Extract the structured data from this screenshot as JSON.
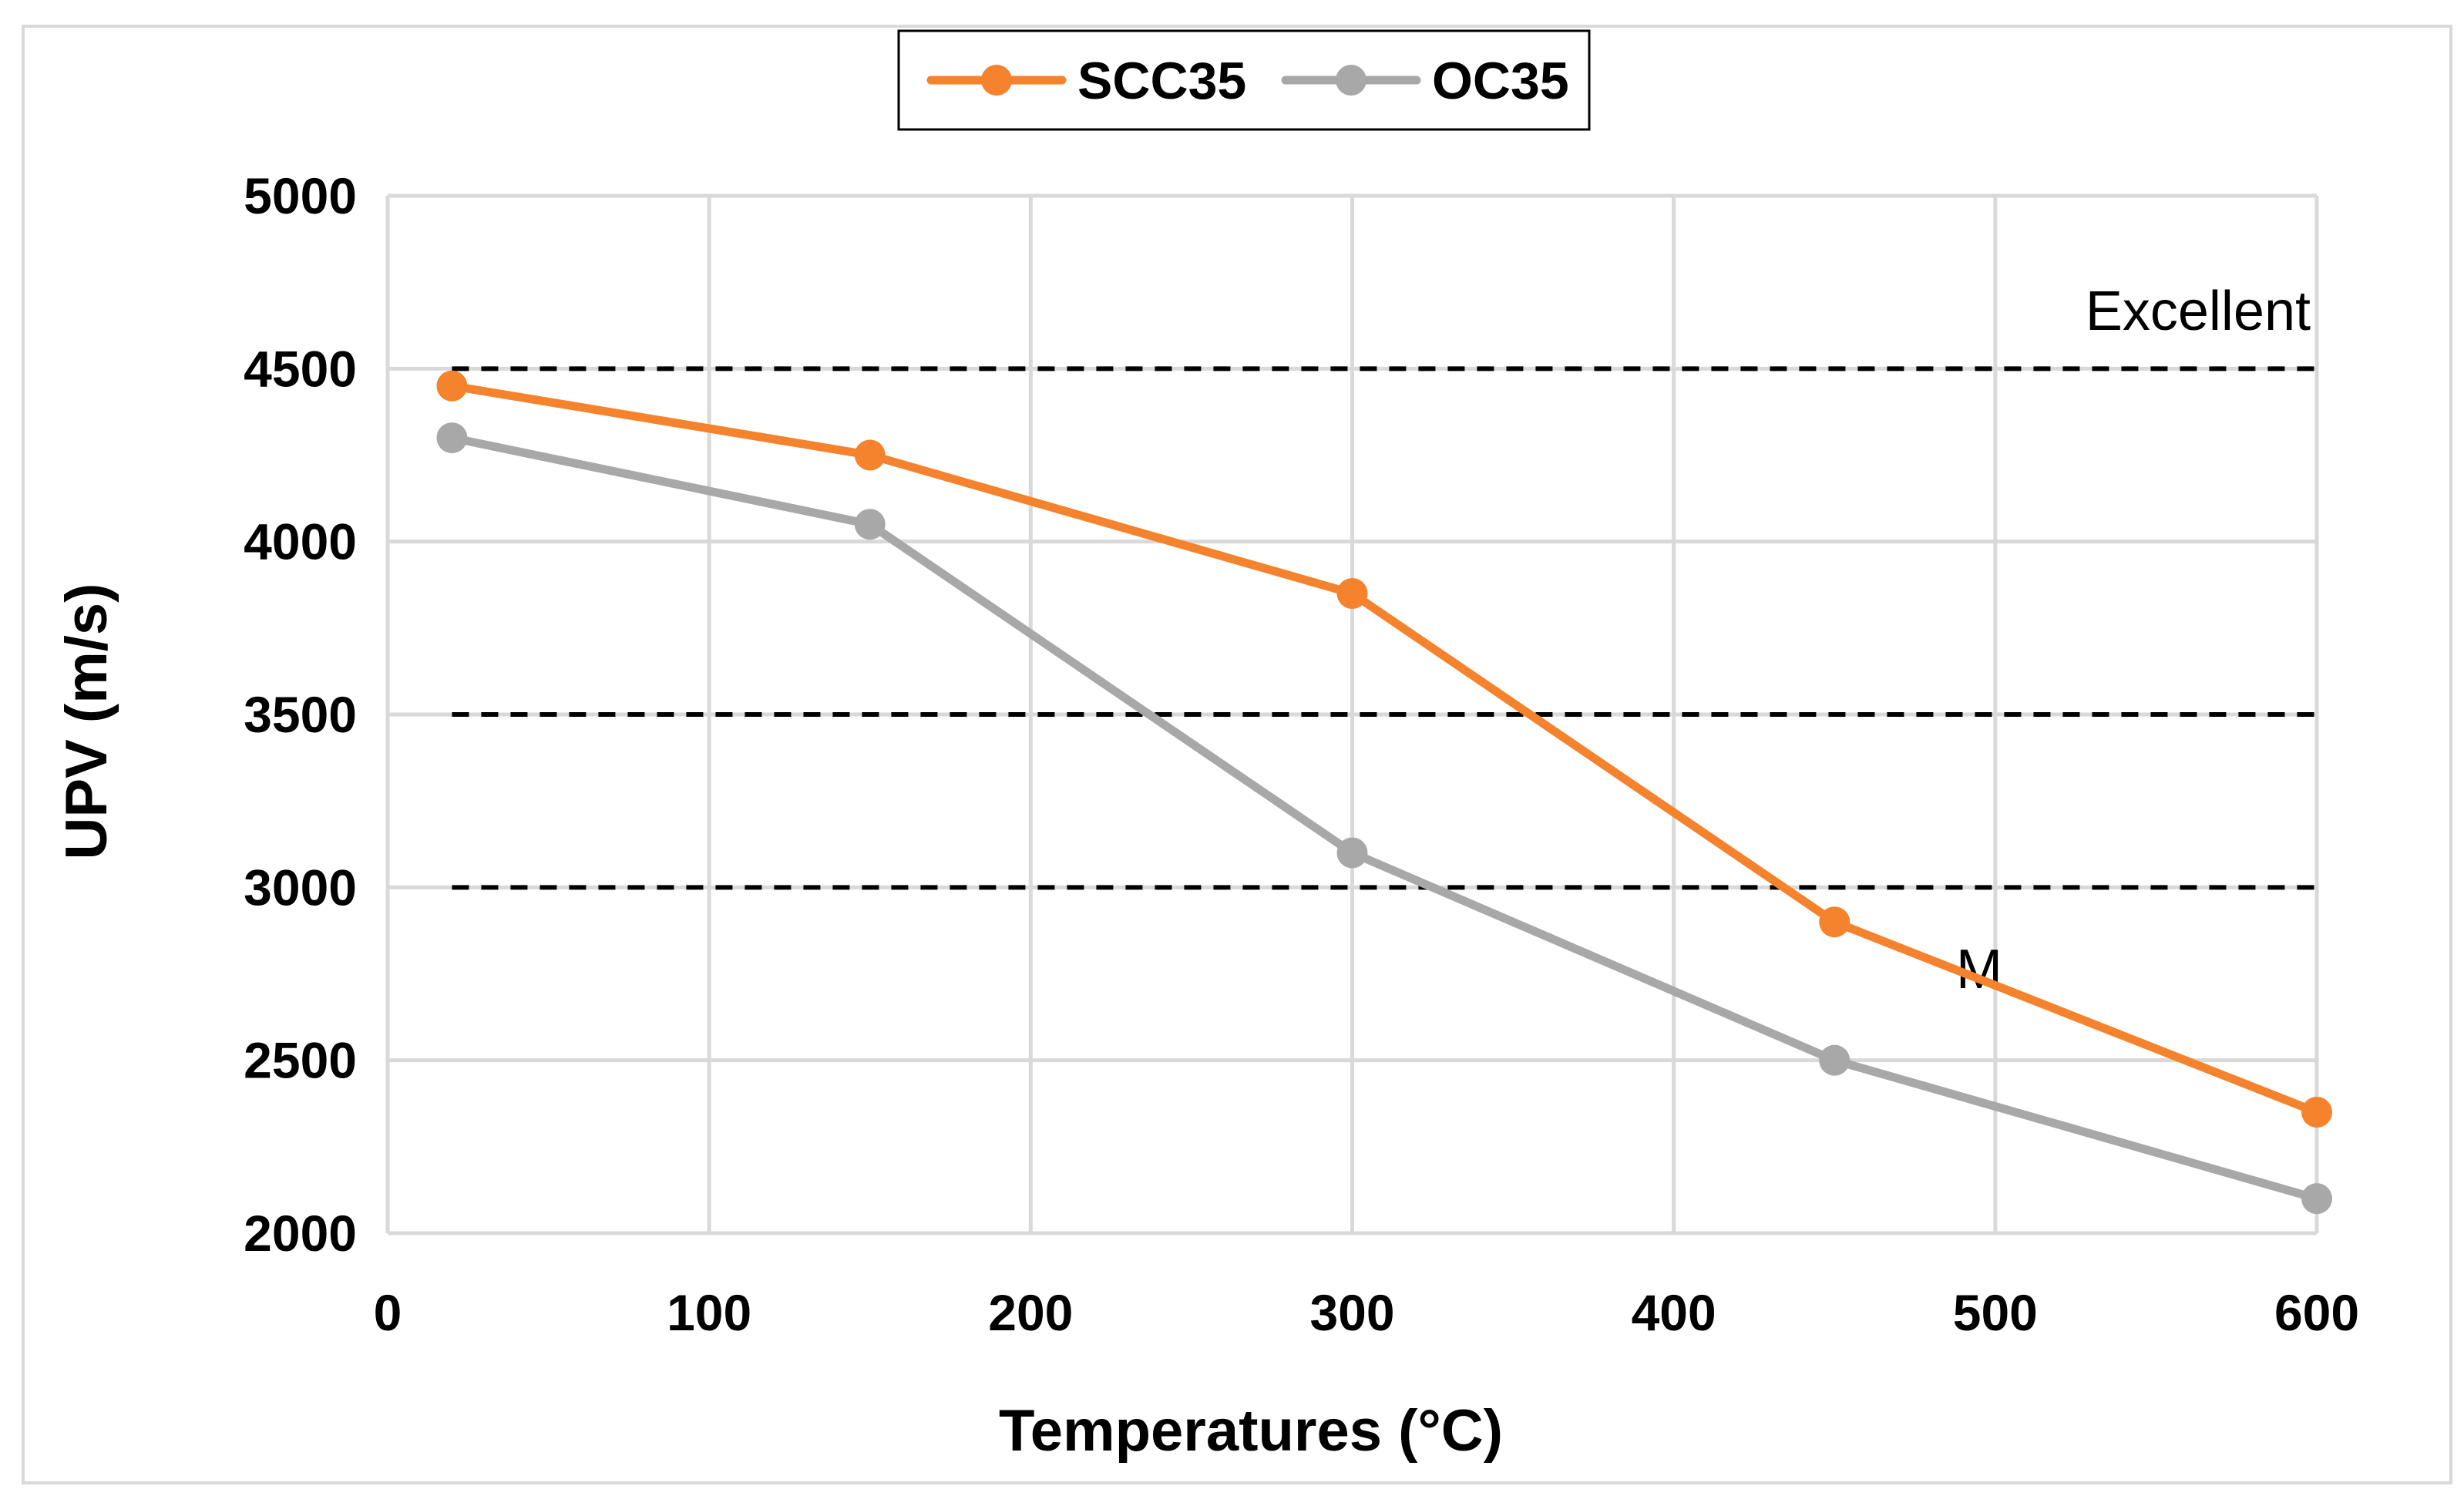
{
  "chart_data": {
    "type": "line",
    "title": "",
    "xlabel": "Temperatures (°C)",
    "ylabel": "UPV (m/s)",
    "xlim": [
      0,
      600
    ],
    "ylim": [
      2000,
      5000
    ],
    "xticks": [
      0,
      100,
      200,
      300,
      400,
      500,
      600
    ],
    "yticks": [
      2000,
      2500,
      3000,
      3500,
      4000,
      4500,
      5000
    ],
    "grid": true,
    "legend_position": "top-center",
    "series": [
      {
        "name": "SCC35",
        "color": "#F5822D",
        "x": [
          20,
          150,
          300,
          450,
          600
        ],
        "values": [
          4450,
          4250,
          3850,
          2900,
          2350
        ]
      },
      {
        "name": "OC35",
        "color": "#A8A8A8",
        "x": [
          20,
          150,
          300,
          450,
          600
        ],
        "values": [
          4300,
          4050,
          3100,
          2500,
          2100
        ]
      }
    ],
    "reference_lines": [
      {
        "y": 4500,
        "style": "dashed"
      },
      {
        "y": 3500,
        "style": "dashed"
      },
      {
        "y": 3000,
        "style": "dashed"
      }
    ],
    "annotations": [
      {
        "text": "Excellent",
        "near_y": 4500
      },
      {
        "text": "M",
        "near_y": 2800
      }
    ]
  }
}
